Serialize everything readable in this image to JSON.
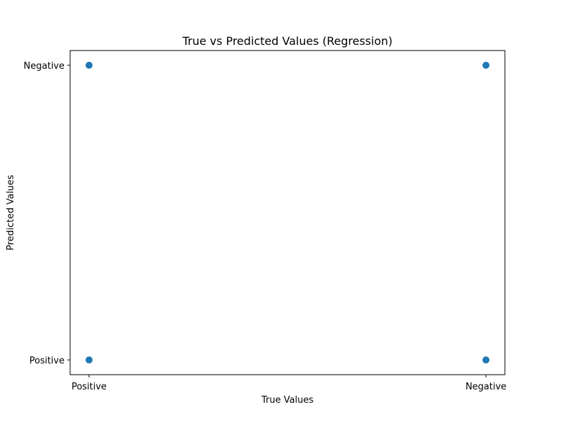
{
  "chart_data": {
    "type": "scatter",
    "title": "True vs Predicted Values (Regression)",
    "xlabel": "True Values",
    "ylabel": "Predicted Values",
    "x_categories": [
      "Positive",
      "Negative"
    ],
    "y_categories": [
      "Positive",
      "Negative"
    ],
    "points": [
      {
        "x": "Positive",
        "y": "Negative"
      },
      {
        "x": "Negative",
        "y": "Negative"
      },
      {
        "x": "Positive",
        "y": "Positive"
      },
      {
        "x": "Negative",
        "y": "Positive"
      }
    ],
    "marker_color": "#1f77b4",
    "grid": false,
    "legend": "none"
  }
}
